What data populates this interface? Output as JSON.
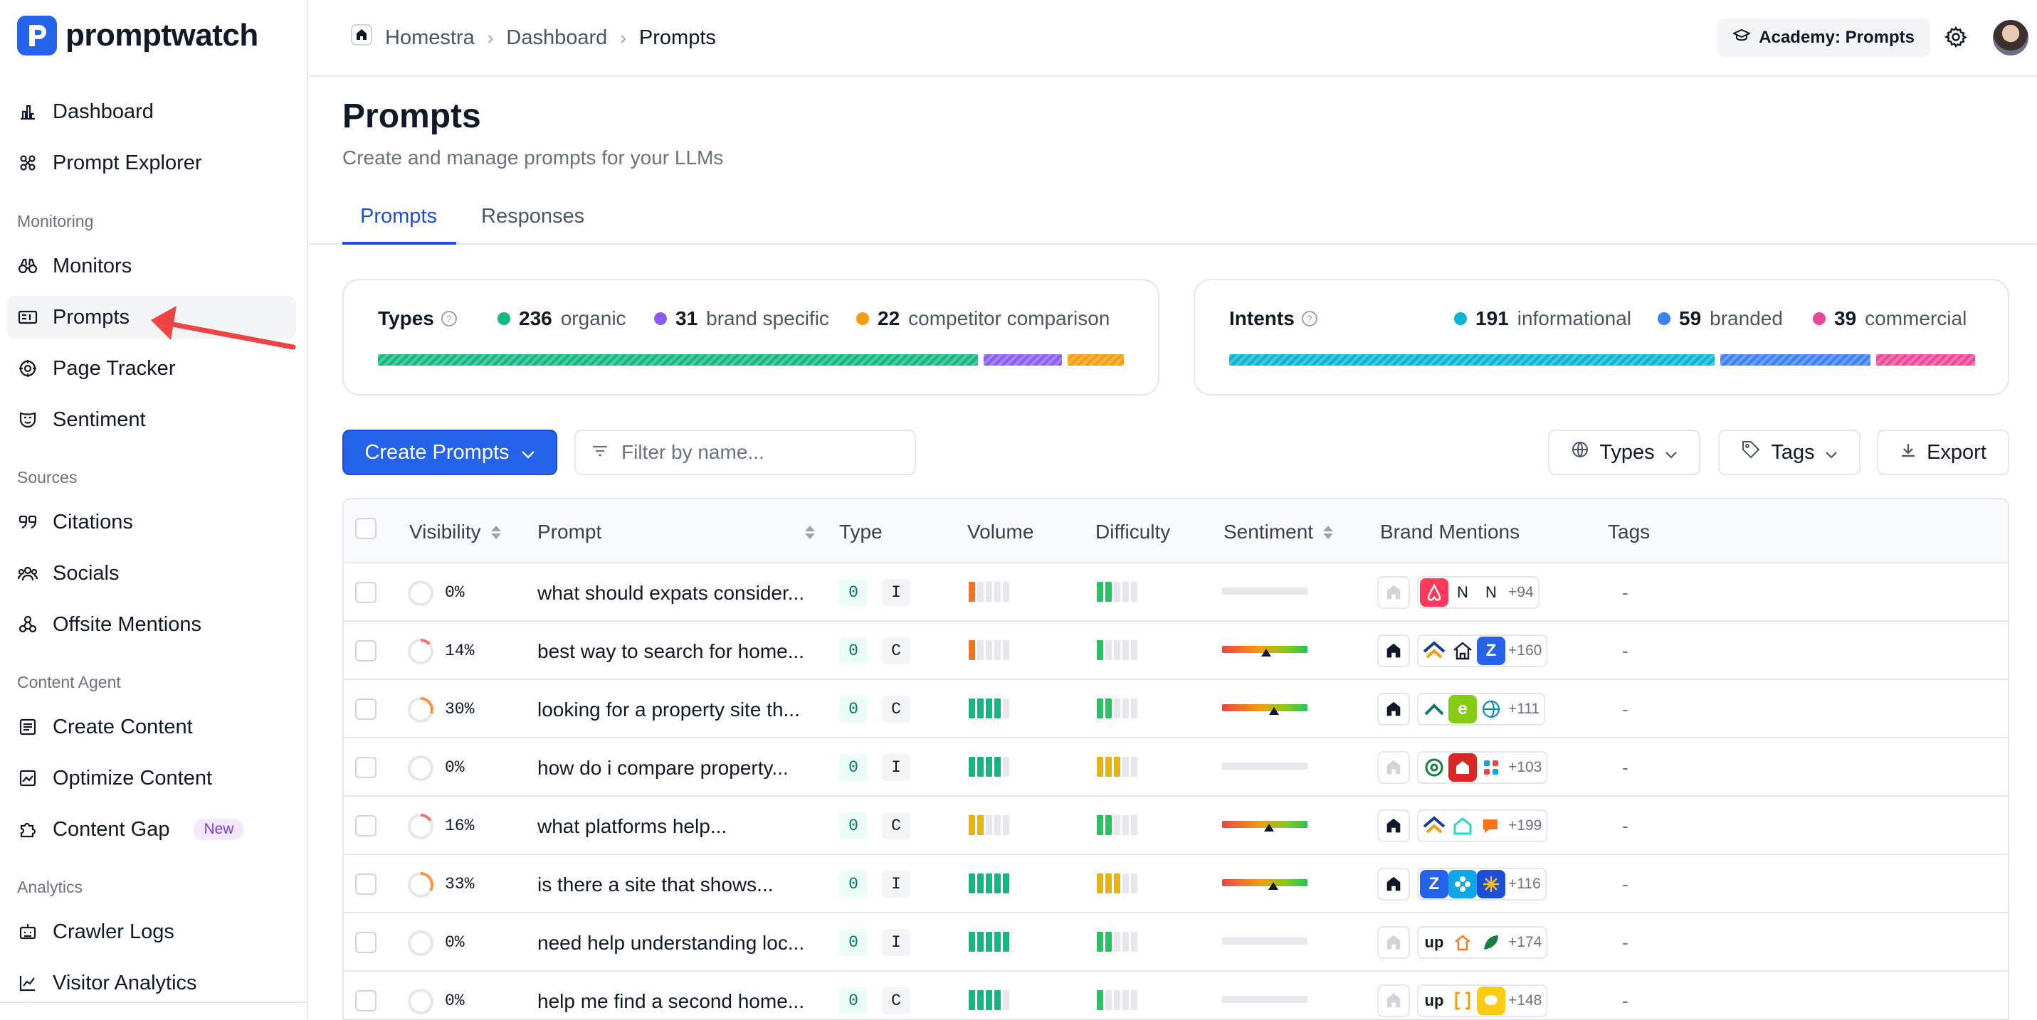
{
  "app": {
    "name": "promptwatch"
  },
  "sidebar": {
    "items": [
      {
        "label": "Dashboard",
        "icon": "bar-chart-icon"
      },
      {
        "label": "Prompt Explorer",
        "icon": "explorer-icon"
      },
      {
        "label": "Monitors",
        "icon": "binoculars-icon"
      },
      {
        "label": "Prompts",
        "icon": "prompts-icon",
        "active": true
      },
      {
        "label": "Page Tracker",
        "icon": "target-icon"
      },
      {
        "label": "Sentiment",
        "icon": "mask-icon"
      },
      {
        "label": "Citations",
        "icon": "quote-icon"
      },
      {
        "label": "Socials",
        "icon": "people-icon"
      },
      {
        "label": "Offsite Mentions",
        "icon": "nodes-icon"
      },
      {
        "label": "Create Content",
        "icon": "document-icon"
      },
      {
        "label": "Optimize Content",
        "icon": "image-chart-icon"
      },
      {
        "label": "Content Gap",
        "icon": "puzzle-icon",
        "badge": "New"
      },
      {
        "label": "Crawler Logs",
        "icon": "robot-icon"
      },
      {
        "label": "Visitor Analytics",
        "icon": "line-chart-icon"
      }
    ],
    "sections": [
      "Monitoring",
      "Sources",
      "Content Agent",
      "Analytics"
    ]
  },
  "header": {
    "breadcrumb": [
      "Homestra",
      "Dashboard",
      "Prompts"
    ],
    "academy_label": "Academy: Prompts"
  },
  "page": {
    "title": "Prompts",
    "subtitle": "Create and manage prompts for your LLMs",
    "tabs": [
      "Prompts",
      "Responses"
    ],
    "active_tab": "Prompts"
  },
  "types_card": {
    "title": "Types",
    "entries": [
      {
        "count": "236",
        "label": "organic",
        "color": "#10b981",
        "value": 236
      },
      {
        "count": "31",
        "label": "brand specific",
        "color": "#8b5cf6",
        "value": 31
      },
      {
        "count": "22",
        "label": "competitor comparison",
        "color": "#f59e0b",
        "value": 22
      }
    ]
  },
  "intents_card": {
    "title": "Intents",
    "entries": [
      {
        "count": "191",
        "label": "informational",
        "color": "#06b6d4",
        "value": 191
      },
      {
        "count": "59",
        "label": "branded",
        "color": "#3b82f6",
        "value": 59
      },
      {
        "count": "39",
        "label": "commercial",
        "color": "#ec4899",
        "value": 39
      }
    ]
  },
  "toolbar": {
    "create_label": "Create Prompts",
    "filter_placeholder": "Filter by name...",
    "types_label": "Types",
    "tags_label": "Tags",
    "export_label": "Export"
  },
  "table": {
    "columns": [
      "Visibility",
      "Prompt",
      "Type",
      "Volume",
      "Difficulty",
      "Sentiment",
      "Brand Mentions",
      "Tags"
    ],
    "rows": [
      {
        "visibility": "0%",
        "vis_value": 0,
        "vis_color": "#e5e7eb",
        "prompt": "what should expats consider...",
        "count": "0",
        "intent": "I",
        "volume": 1,
        "volume_color": "#f97316",
        "difficulty": 2,
        "difficulty_color": "#22c55e",
        "sentiment": null,
        "mentions_more": "+94",
        "tags": "-",
        "brand_logos": [
          "airbnb",
          "N",
          "N"
        ],
        "owner_highlight": false
      },
      {
        "visibility": "14%",
        "vis_value": 0.14,
        "vis_color": "#f87171",
        "prompt": "best way to search for home...",
        "count": "0",
        "intent": "C",
        "volume": 1,
        "volume_color": "#f97316",
        "difficulty": 1,
        "difficulty_color": "#22c55e",
        "sentiment": 0.52,
        "mentions_more": "+160",
        "tags": "-",
        "brand_logos": [
          "roof",
          "house",
          "Z"
        ],
        "owner_highlight": true
      },
      {
        "visibility": "30%",
        "vis_value": 0.3,
        "vis_color": "#fb923c",
        "prompt": "looking for a property site th...",
        "count": "0",
        "intent": "C",
        "volume": 4,
        "volume_color": "#10b981",
        "difficulty": 2,
        "difficulty_color": "#22c55e",
        "sentiment": 0.61,
        "mentions_more": "+111",
        "tags": "-",
        "brand_logos": [
          "peak",
          "e",
          "globe"
        ],
        "owner_highlight": true
      },
      {
        "visibility": "0%",
        "vis_value": 0,
        "vis_color": "#e5e7eb",
        "prompt": "how do i compare property...",
        "count": "0",
        "intent": "I",
        "volume": 4,
        "volume_color": "#10b981",
        "difficulty": 3,
        "difficulty_color": "#eab308",
        "sentiment": null,
        "mentions_more": "+103",
        "tags": "-",
        "brand_logos": [
          "wa",
          "red",
          "dots"
        ],
        "owner_highlight": false
      },
      {
        "visibility": "16%",
        "vis_value": 0.16,
        "vis_color": "#f87171",
        "prompt": "what platforms help...",
        "count": "0",
        "intent": "C",
        "volume": 2,
        "volume_color": "#eab308",
        "difficulty": 2,
        "difficulty_color": "#22c55e",
        "sentiment": 0.55,
        "mentions_more": "+199",
        "tags": "-",
        "brand_logos": [
          "roof",
          "house-teal",
          "chat"
        ],
        "owner_highlight": true
      },
      {
        "visibility": "33%",
        "vis_value": 0.33,
        "vis_color": "#fb923c",
        "prompt": "is there a site that shows...",
        "count": "0",
        "intent": "I",
        "volume": 5,
        "volume_color": "#10b981",
        "difficulty": 3,
        "difficulty_color": "#eab308",
        "sentiment": 0.6,
        "mentions_more": "+116",
        "tags": "-",
        "brand_logos": [
          "Z",
          "flower",
          "burst"
        ],
        "owner_highlight": true
      },
      {
        "visibility": "0%",
        "vis_value": 0,
        "vis_color": "#e5e7eb",
        "prompt": "need help understanding loc...",
        "count": "0",
        "intent": "I",
        "volume": 5,
        "volume_color": "#10b981",
        "difficulty": 2,
        "difficulty_color": "#22c55e",
        "sentiment": null,
        "mentions_more": "+174",
        "tags": "-",
        "brand_logos": [
          "up",
          "home-orange",
          "leaf"
        ],
        "owner_highlight": false
      },
      {
        "visibility": "0%",
        "vis_value": 0,
        "vis_color": "#e5e7eb",
        "prompt": "help me find a second home...",
        "count": "0",
        "intent": "C",
        "volume": 4,
        "volume_color": "#10b981",
        "difficulty": 1,
        "difficulty_color": "#22c55e",
        "sentiment": null,
        "mentions_more": "+148",
        "tags": "-",
        "brand_logos": [
          "up",
          "bracket",
          "chat-yellow"
        ],
        "owner_highlight": false
      }
    ]
  }
}
